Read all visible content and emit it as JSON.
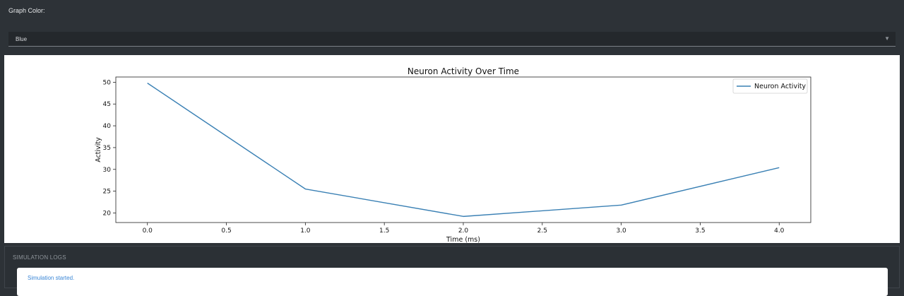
{
  "controls": {
    "graph_color_label": "Graph Color:",
    "graph_color_value": "Blue",
    "arrow_glyph": "▼"
  },
  "logs": {
    "title": "SIMULATION LOGS",
    "entries": [
      "Simulation started."
    ]
  },
  "chart_data": {
    "type": "line",
    "title": "Neuron Activity Over Time",
    "xlabel": "Time (ms)",
    "ylabel": "Activity",
    "x": [
      0.0,
      1.0,
      2.0,
      3.0,
      4.0
    ],
    "series": [
      {
        "name": "Neuron Activity",
        "values": [
          49.8,
          25.5,
          19.2,
          21.8,
          30.4
        ],
        "color": "#3a80b4"
      }
    ],
    "xticks": [
      "0.0",
      "0.5",
      "1.0",
      "1.5",
      "2.0",
      "2.5",
      "3.0",
      "3.5",
      "4.0"
    ],
    "yticks": [
      "20",
      "25",
      "30",
      "35",
      "40",
      "45",
      "50"
    ],
    "xlim": [
      -0.2,
      4.2
    ],
    "ylim": [
      17.8,
      51.2
    ],
    "legend": "top-right",
    "grid": false
  }
}
